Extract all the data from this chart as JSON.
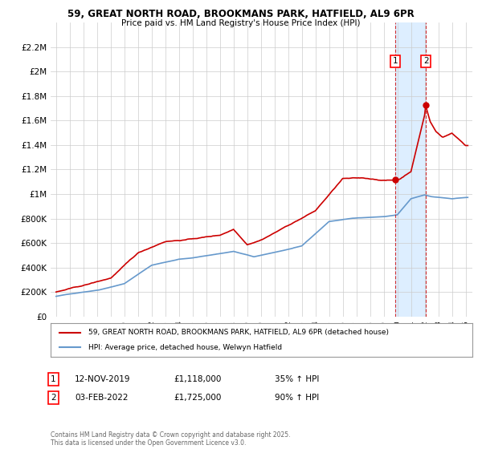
{
  "title1": "59, GREAT NORTH ROAD, BROOKMANS PARK, HATFIELD, AL9 6PR",
  "title2": "Price paid vs. HM Land Registry's House Price Index (HPI)",
  "legend_line1": "59, GREAT NORTH ROAD, BROOKMANS PARK, HATFIELD, AL9 6PR (detached house)",
  "legend_line2": "HPI: Average price, detached house, Welwyn Hatfield",
  "marker1_date": "12-NOV-2019",
  "marker1_price": "£1,118,000",
  "marker1_hpi": "35% ↑ HPI",
  "marker2_date": "03-FEB-2022",
  "marker2_price": "£1,725,000",
  "marker2_hpi": "90% ↑ HPI",
  "footnote": "Contains HM Land Registry data © Crown copyright and database right 2025.\nThis data is licensed under the Open Government Licence v3.0.",
  "red_color": "#cc0000",
  "blue_color": "#6699cc",
  "shade_color": "#ddeeff",
  "grid_color": "#cccccc",
  "bg_color": "#ffffff",
  "ylim": [
    0,
    2400000
  ],
  "yticks": [
    0,
    200000,
    400000,
    600000,
    800000,
    1000000,
    1200000,
    1400000,
    1600000,
    1800000,
    2000000,
    2200000
  ],
  "ytick_labels": [
    "£0",
    "£200K",
    "£400K",
    "£600K",
    "£800K",
    "£1M",
    "£1.2M",
    "£1.4M",
    "£1.6M",
    "£1.8M",
    "£2M",
    "£2.2M"
  ],
  "marker1_x_year": 2019.87,
  "marker1_y": 1118000,
  "marker2_x_year": 2022.09,
  "marker2_y": 1725000,
  "shade_x1": 2019.87,
  "shade_x2": 2022.09,
  "xmin": 1994.6,
  "xmax": 2025.5
}
